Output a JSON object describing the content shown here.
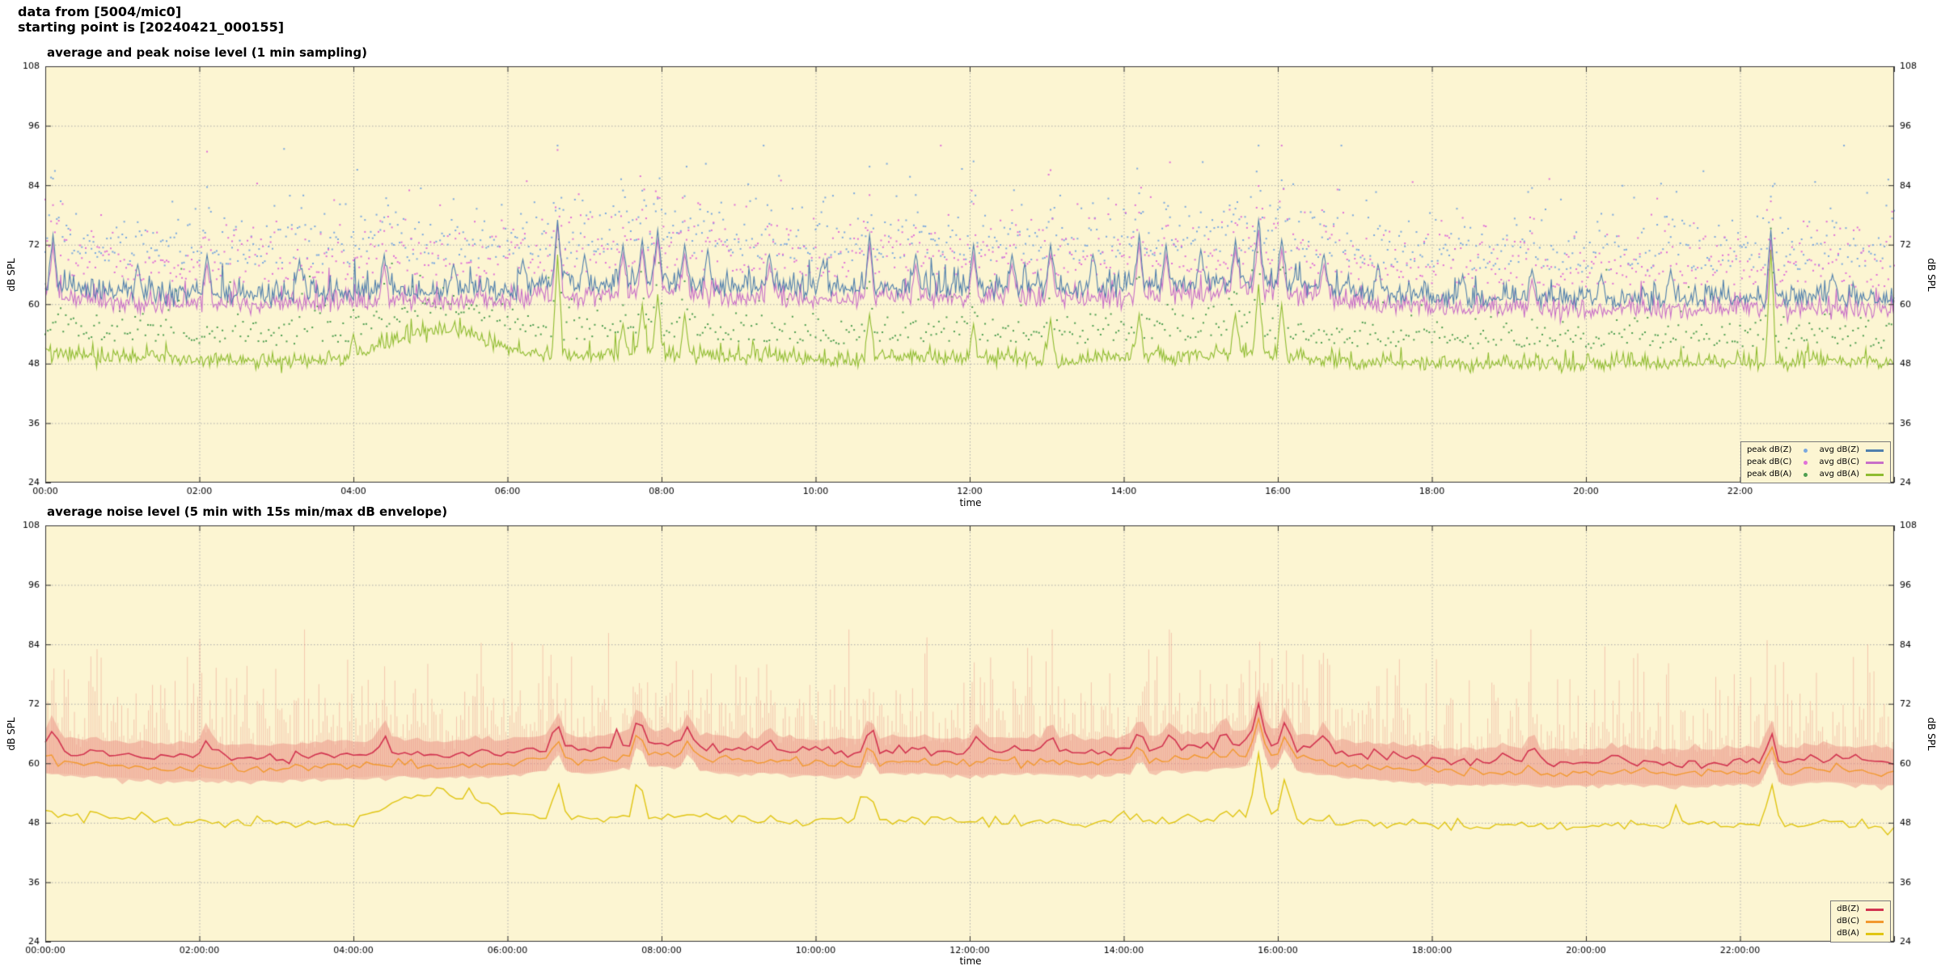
{
  "header": {
    "line1": "data from [5004/mic0]",
    "line2": "starting point is [20240421_000155]"
  },
  "colors": {
    "plot_background": "#fcf5d2",
    "grid": "#ababab",
    "frame": "#333333"
  },
  "chart_data": [
    {
      "type": "line",
      "title": "average and peak noise level (1 min sampling)",
      "xlabel": "time",
      "ylabel_left": "dB SPL",
      "ylabel_right": "dB SPL",
      "xlim_hours": [
        0,
        24
      ],
      "ylim": [
        24,
        108
      ],
      "yticks": [
        24,
        36,
        48,
        60,
        72,
        84,
        96,
        108
      ],
      "xtick_hours": [
        0,
        2,
        4,
        6,
        8,
        10,
        12,
        14,
        16,
        18,
        20,
        22
      ],
      "xtick_labels": [
        "00:00",
        "02:00",
        "04:00",
        "06:00",
        "08:00",
        "10:00",
        "12:00",
        "14:00",
        "16:00",
        "18:00",
        "20:00",
        "22:00"
      ],
      "grid": true,
      "legend_position": "bottom-right",
      "baseline_step_hours": 0.5,
      "sample_minutes": 1,
      "spike_width_hours": 0.07,
      "series": [
        {
          "name": "avg dB(Z)",
          "kind": "line",
          "color": "#507fad",
          "width": 1.1,
          "jitter": 1.5,
          "spike_noise": 1.0,
          "baseline": [
            63.5,
            62.5,
            62,
            61.5,
            62,
            61.5,
            61.5,
            62,
            62,
            62.5,
            62,
            62.5,
            62.5,
            63.5,
            63,
            64,
            64.5,
            63.5,
            63,
            63,
            62.5,
            62.5,
            63,
            63,
            62.5,
            63,
            63,
            62.5,
            63,
            63.5,
            63.5,
            64.5,
            64,
            63,
            62,
            61.5,
            61,
            60.5,
            61,
            60.5,
            60.5,
            61,
            60.5,
            60.5,
            61,
            60.5,
            61,
            60.5,
            60.5
          ],
          "spikes": [
            [
              0.1,
              74
            ],
            [
              1.2,
              68
            ],
            [
              2.1,
              70
            ],
            [
              3.3,
              69
            ],
            [
              4.4,
              70
            ],
            [
              5.3,
              68
            ],
            [
              6.2,
              69
            ],
            [
              6.65,
              77
            ],
            [
              7.0,
              70
            ],
            [
              7.5,
              72
            ],
            [
              7.75,
              73
            ],
            [
              7.95,
              75
            ],
            [
              8.3,
              72
            ],
            [
              8.6,
              71
            ],
            [
              9.4,
              70
            ],
            [
              10.1,
              69
            ],
            [
              10.7,
              74
            ],
            [
              11.3,
              70
            ],
            [
              12.05,
              72
            ],
            [
              12.55,
              70
            ],
            [
              13.05,
              72
            ],
            [
              13.6,
              70
            ],
            [
              14.2,
              74
            ],
            [
              14.55,
              72
            ],
            [
              15.0,
              71
            ],
            [
              15.45,
              73
            ],
            [
              15.75,
              77
            ],
            [
              16.05,
              73
            ],
            [
              16.6,
              70
            ],
            [
              17.3,
              68
            ],
            [
              18.4,
              66
            ],
            [
              19.3,
              67
            ],
            [
              20.2,
              66
            ],
            [
              21.1,
              67
            ],
            [
              22.4,
              75
            ],
            [
              23.2,
              66
            ]
          ]
        },
        {
          "name": "avg dB(C)",
          "kind": "line",
          "color": "#c86fc8",
          "width": 1.1,
          "jitter": 1.4,
          "spike_noise": 1.0,
          "baseline": [
            61.5,
            60.5,
            60,
            59.5,
            60,
            59.5,
            59.5,
            60,
            60,
            60.5,
            60,
            60.5,
            60.5,
            61.5,
            61,
            62,
            62.5,
            61.5,
            61,
            61,
            60.5,
            60.5,
            61,
            61,
            60.5,
            61,
            61,
            60.5,
            61,
            61.5,
            61.5,
            62.5,
            62,
            61,
            60,
            59.5,
            59,
            58.5,
            59,
            58.5,
            58.5,
            59,
            58.5,
            58.5,
            59,
            58.5,
            59,
            58.5,
            58.5
          ],
          "spikes": [
            [
              0.1,
              72
            ],
            [
              2.1,
              68
            ],
            [
              4.4,
              68
            ],
            [
              6.65,
              76
            ],
            [
              7.5,
              70
            ],
            [
              7.75,
              71
            ],
            [
              7.95,
              73
            ],
            [
              8.3,
              70
            ],
            [
              9.4,
              68
            ],
            [
              10.7,
              72
            ],
            [
              11.3,
              68
            ],
            [
              12.05,
              70
            ],
            [
              12.55,
              68
            ],
            [
              13.05,
              70
            ],
            [
              14.2,
              72
            ],
            [
              14.55,
              70
            ],
            [
              15.45,
              71
            ],
            [
              15.75,
              75
            ],
            [
              16.05,
              71
            ],
            [
              16.6,
              68
            ],
            [
              19.3,
              65
            ],
            [
              22.4,
              73
            ]
          ]
        },
        {
          "name": "avg dB(A)",
          "kind": "line",
          "color": "#8fbc30",
          "width": 1.1,
          "jitter": 1.2,
          "spike_noise": 0.7,
          "baseline": [
            50,
            49.5,
            49,
            49,
            48.5,
            48.5,
            48,
            48.5,
            48.5,
            52.5,
            54.5,
            54,
            50.5,
            49.5,
            49,
            49.5,
            50,
            49.5,
            49,
            49,
            48.5,
            48.5,
            49,
            49,
            48.5,
            49,
            48.5,
            48.5,
            49,
            49,
            49.5,
            50,
            49.5,
            48.5,
            48,
            48,
            48,
            47.5,
            48,
            47.5,
            47.5,
            48,
            47.5,
            48,
            48,
            47.5,
            48.5,
            48,
            47.5
          ],
          "spikes": [
            [
              4.0,
              54
            ],
            [
              6.65,
              70
            ],
            [
              7.5,
              56
            ],
            [
              7.75,
              60
            ],
            [
              7.95,
              62
            ],
            [
              8.3,
              58
            ],
            [
              10.7,
              58
            ],
            [
              12.05,
              56
            ],
            [
              13.05,
              57
            ],
            [
              14.2,
              58
            ],
            [
              15.45,
              58
            ],
            [
              15.75,
              64
            ],
            [
              16.05,
              60
            ],
            [
              22.4,
              71
            ]
          ]
        },
        {
          "name": "peak dB(Z)",
          "kind": "scatter",
          "color": "#7aa8df",
          "follow": 0,
          "offset": 6,
          "spread": 5.5,
          "every_minutes": 1.5,
          "extra_prob": 0.04,
          "extra_max": 18
        },
        {
          "name": "peak dB(C)",
          "kind": "scatter",
          "color": "#e070d8",
          "follow": 1,
          "offset": 5,
          "spread": 5.5,
          "every_minutes": 1.5,
          "extra_prob": 0.04,
          "extra_max": 16
        },
        {
          "name": "peak dB(A)",
          "kind": "scatter",
          "color": "#4e9e50",
          "follow": 2,
          "offset": 3.5,
          "spread": 3.2,
          "every_minutes": 2,
          "extra_prob": 0.05,
          "extra_max": 14
        }
      ],
      "legend": [
        {
          "label": "peak dB(Z)",
          "marker": "dot",
          "color": "#7aa8df"
        },
        {
          "label": "peak dB(C)",
          "marker": "dot",
          "color": "#e070d8"
        },
        {
          "label": "peak dB(A)",
          "marker": "dot",
          "color": "#4e9e50"
        },
        {
          "label": "avg dB(Z)",
          "marker": "line",
          "color": "#507fad"
        },
        {
          "label": "avg dB(C)",
          "marker": "line",
          "color": "#c86fc8"
        },
        {
          "label": "avg dB(A)",
          "marker": "line",
          "color": "#8fbc30"
        }
      ]
    },
    {
      "type": "line",
      "title": "average noise level (5 min with 15s min/max dB envelope)",
      "xlabel": "time",
      "ylabel_left": "dB SPL",
      "ylabel_right": "dB SPL",
      "xlim_hours": [
        0,
        24
      ],
      "ylim": [
        24,
        108
      ],
      "yticks": [
        24,
        36,
        48,
        60,
        72,
        84,
        96,
        108
      ],
      "xtick_hours": [
        0,
        2,
        4,
        6,
        8,
        10,
        12,
        14,
        16,
        18,
        20,
        22
      ],
      "xtick_labels": [
        "00:00:00",
        "02:00:00",
        "04:00:00",
        "06:00:00",
        "08:00:00",
        "10:00:00",
        "12:00:00",
        "14:00:00",
        "16:00:00",
        "18:00:00",
        "20:00:00",
        "22:00:00"
      ],
      "grid": true,
      "legend_position": "bottom-right",
      "baseline_step_hours": 0.5,
      "sample_minutes": 5,
      "spike_width_hours": 0.12,
      "envelope": {
        "color_band": "rgba(235,140,128,0.45)",
        "color_hairs": "rgba(232,130,120,0.40)",
        "top_follow": 0,
        "bottom_follow": 1,
        "band_top_offset": 2.5,
        "band_bottom_offset": 2.2,
        "hair_step_minutes": 1.6,
        "hair_spread": 6,
        "hair_extra_prob": 0.18,
        "hair_extra_max": 15
      },
      "series": [
        {
          "name": "dB(Z)",
          "kind": "line",
          "color": "#d23450",
          "width": 1.6,
          "jitter": 0.9,
          "spike_noise": 0.35,
          "baseline": [
            62.5,
            62,
            61.5,
            61,
            61.5,
            61,
            61,
            61.5,
            61.5,
            62,
            61.5,
            62,
            62,
            63,
            62.5,
            63.5,
            64,
            63,
            62.5,
            62.5,
            62,
            62,
            62.5,
            62.5,
            62,
            62.5,
            62.5,
            62,
            62.5,
            63,
            63,
            64,
            63.5,
            62.5,
            61.5,
            61,
            60.5,
            60,
            60.5,
            60,
            60,
            60.5,
            60,
            60,
            60.5,
            60,
            61,
            60.5,
            60
          ],
          "spikes": [
            [
              0.1,
              67
            ],
            [
              2.1,
              65
            ],
            [
              4.4,
              66
            ],
            [
              6.65,
              68
            ],
            [
              7.7,
              70
            ],
            [
              8.35,
              68
            ],
            [
              9.4,
              65
            ],
            [
              10.7,
              67
            ],
            [
              12.1,
              66
            ],
            [
              13.05,
              66
            ],
            [
              14.2,
              67
            ],
            [
              14.6,
              66
            ],
            [
              15.3,
              67
            ],
            [
              15.75,
              72
            ],
            [
              16.1,
              69
            ],
            [
              16.6,
              66
            ],
            [
              19.3,
              64
            ],
            [
              22.4,
              67
            ]
          ]
        },
        {
          "name": "dB(C)",
          "kind": "line",
          "color": "#f2992e",
          "width": 1.4,
          "jitter": 0.85,
          "spike_noise": 0.35,
          "baseline": [
            60.3,
            59.8,
            59.3,
            58.8,
            59.3,
            58.8,
            58.8,
            59.3,
            59.3,
            59.8,
            59.3,
            59.8,
            59.8,
            60.8,
            60.3,
            61.3,
            61.8,
            60.8,
            60.3,
            60.3,
            59.8,
            59.8,
            60.3,
            60.3,
            59.8,
            60.3,
            60.3,
            59.8,
            60.3,
            60.8,
            60.8,
            61.8,
            61.3,
            60.3,
            59.3,
            58.8,
            58.3,
            57.8,
            58.3,
            57.8,
            57.8,
            58.3,
            57.8,
            57.8,
            58.3,
            57.8,
            58.8,
            58.3,
            57.8
          ],
          "spikes": [
            [
              6.65,
              65
            ],
            [
              7.7,
              67
            ],
            [
              8.35,
              65
            ],
            [
              10.7,
              64
            ],
            [
              14.2,
              64
            ],
            [
              15.75,
              69
            ],
            [
              16.1,
              66
            ],
            [
              22.4,
              64
            ]
          ]
        },
        {
          "name": "dB(A)",
          "kind": "line",
          "color": "#e0c512",
          "width": 1.4,
          "jitter": 1.0,
          "spike_noise": 0.4,
          "baseline": [
            49.5,
            49,
            48.5,
            48.5,
            48,
            48,
            47.5,
            48,
            48,
            52,
            54,
            53.5,
            50,
            49,
            48.5,
            49,
            49.5,
            49,
            48.5,
            48.5,
            48,
            48,
            48.5,
            48.5,
            48,
            48.5,
            48,
            48,
            48.5,
            48.5,
            49,
            49.5,
            49,
            48,
            47.5,
            47.5,
            47.5,
            47,
            47.5,
            47,
            47,
            47.5,
            47,
            47.5,
            47.5,
            47,
            48,
            47.5,
            47
          ],
          "spikes": [
            [
              6.65,
              57
            ],
            [
              7.7,
              58
            ],
            [
              10.7,
              55
            ],
            [
              15.75,
              62
            ],
            [
              16.1,
              58
            ],
            [
              22.4,
              57
            ]
          ]
        }
      ],
      "legend": [
        {
          "label": "dB(Z)",
          "marker": "line",
          "color": "#d23450"
        },
        {
          "label": "dB(C)",
          "marker": "line",
          "color": "#f2992e"
        },
        {
          "label": "dB(A)",
          "marker": "line",
          "color": "#e0c512"
        }
      ]
    }
  ]
}
